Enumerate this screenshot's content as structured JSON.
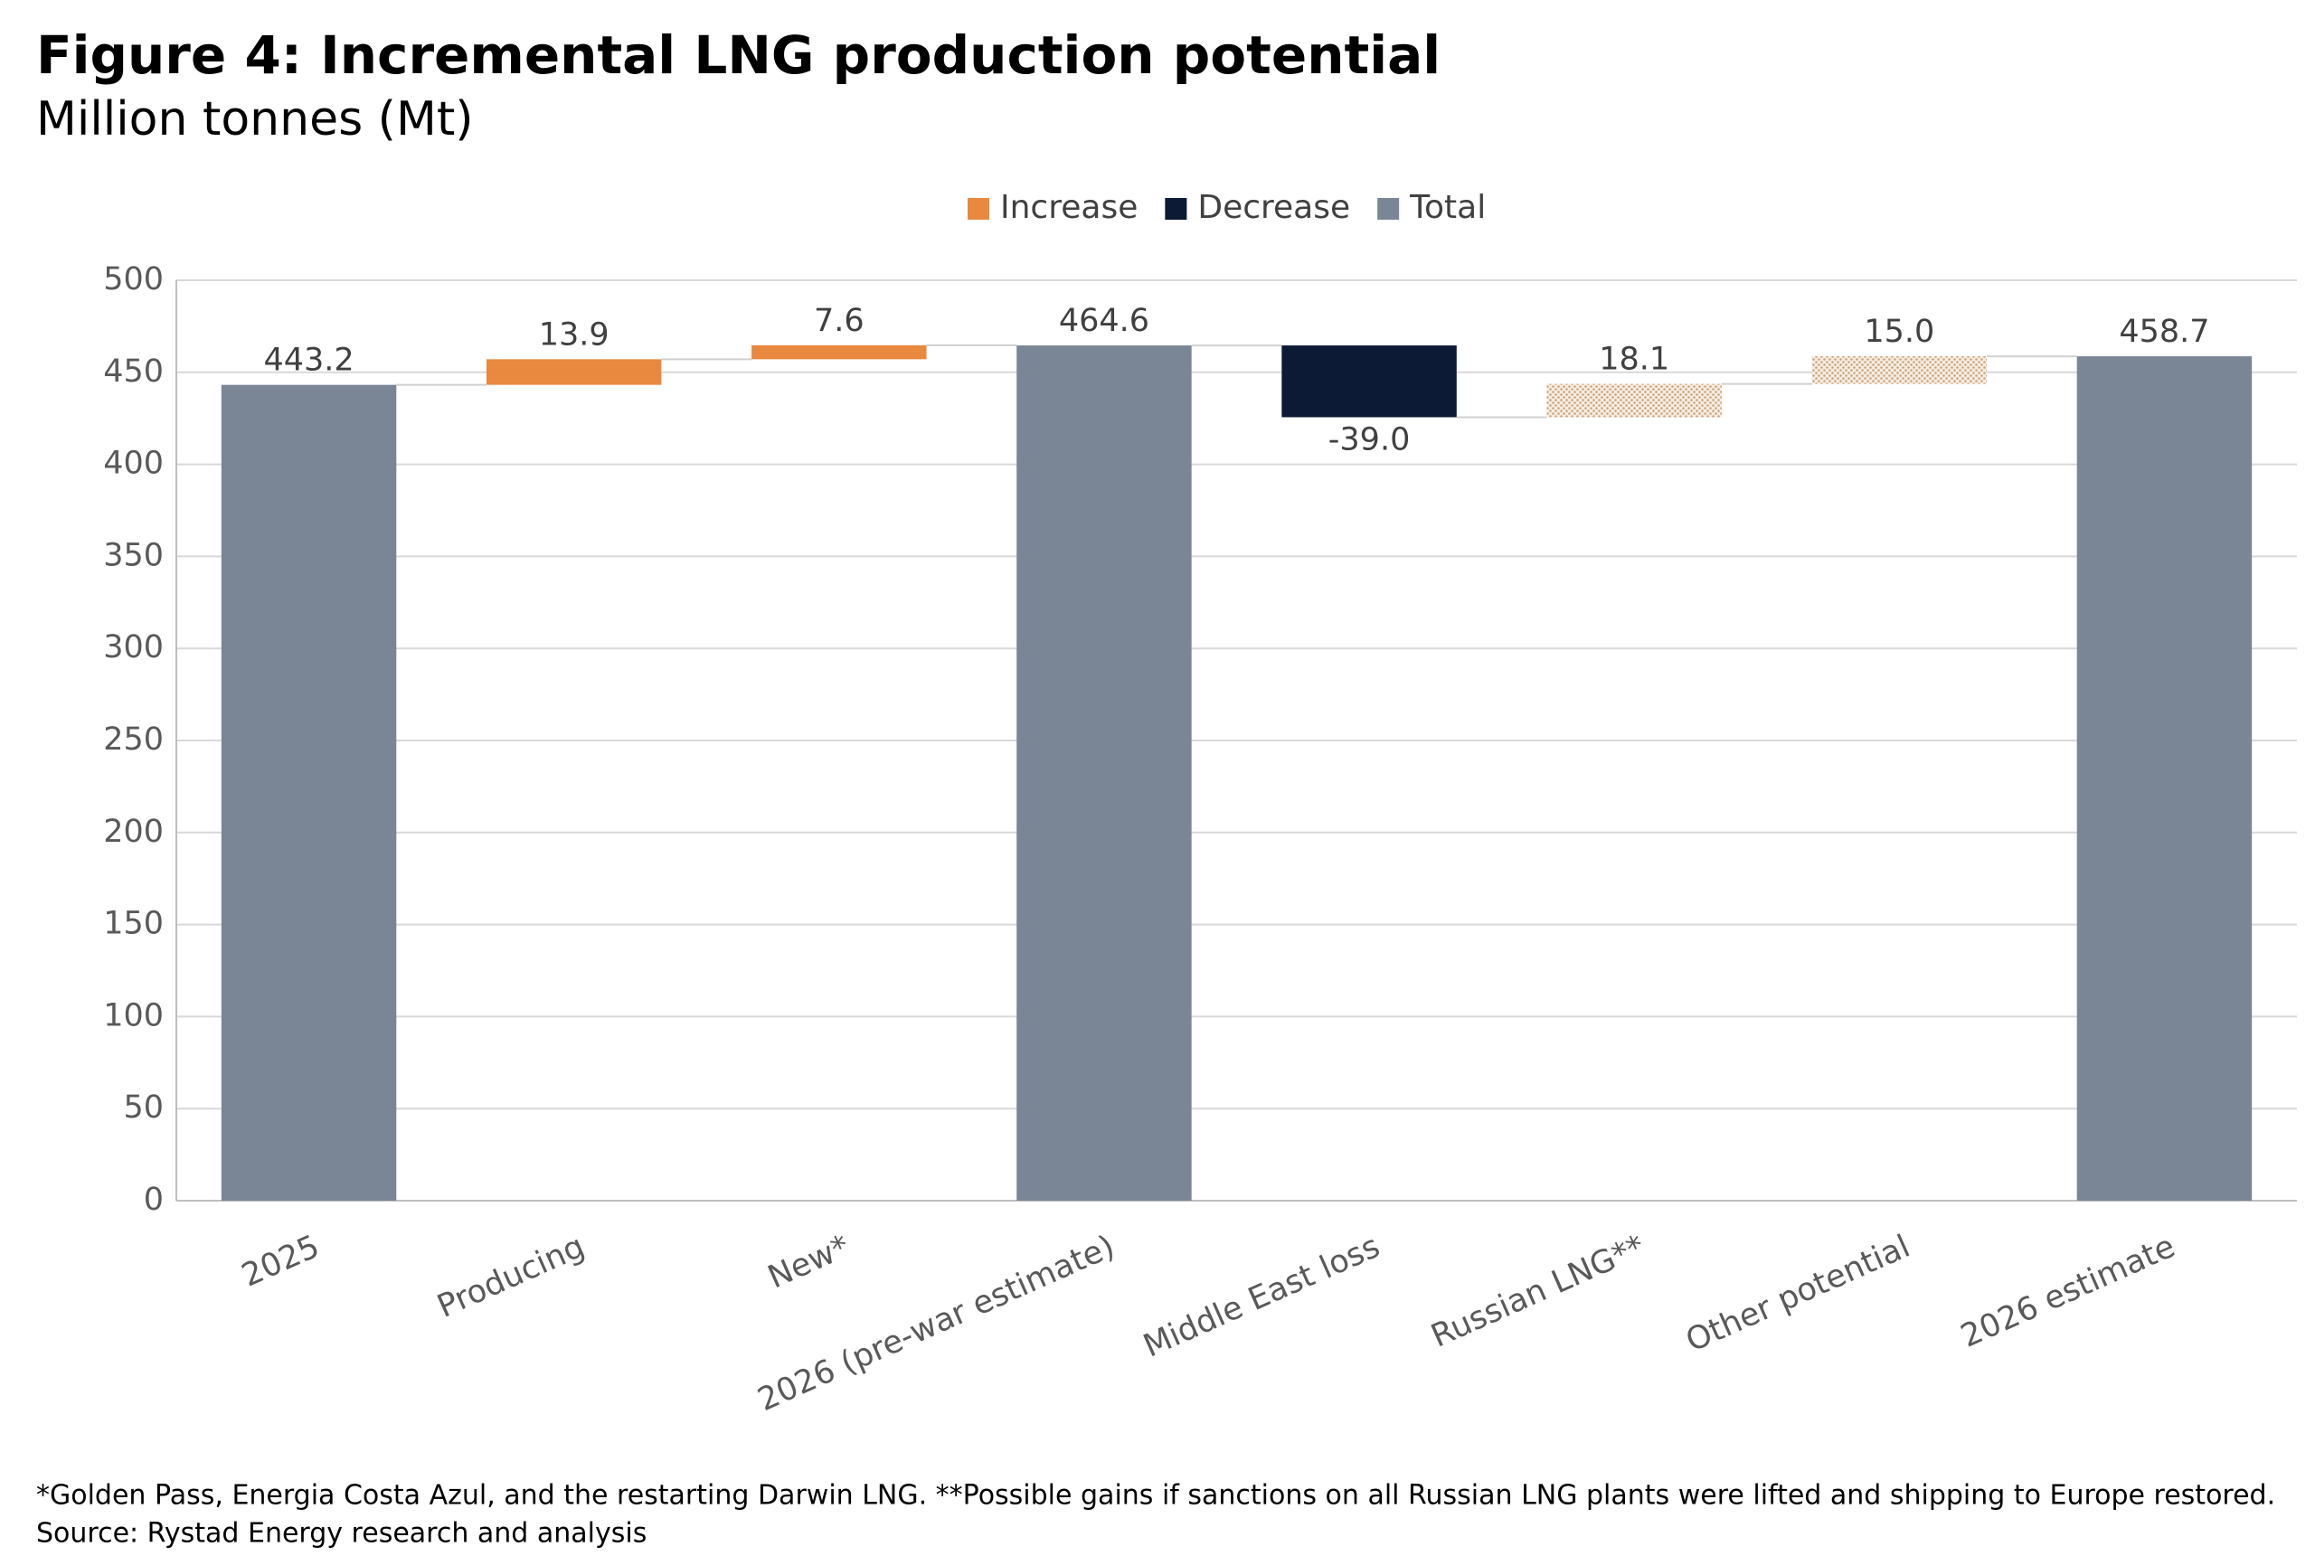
{
  "chart_data": {
    "type": "waterfall",
    "title": "Figure 4: Incremental LNG production potential",
    "subtitle": "Million tonnes (Mt)",
    "categories": [
      "2025",
      "Producing",
      "New*",
      "2026 (pre-war estimate)",
      "Middle East loss",
      "Russian LNG**",
      "Other potential",
      "2026 estimate"
    ],
    "values": [
      443.2,
      13.9,
      7.6,
      464.6,
      -39.0,
      18.1,
      15.0,
      458.7
    ],
    "value_labels": [
      "443.2",
      "13.9",
      "7.6",
      "464.6",
      "-39.0",
      "18.1",
      "15.0",
      "458.7"
    ],
    "measure": [
      "total",
      "relative",
      "relative",
      "total",
      "relative",
      "relative",
      "relative",
      "total"
    ],
    "hatched": [
      false,
      false,
      false,
      false,
      false,
      true,
      true,
      false
    ],
    "legend": [
      {
        "name": "Increase",
        "color": "#e8893f"
      },
      {
        "name": "Decrease",
        "color": "#0c1a36"
      },
      {
        "name": "Total",
        "color": "#7a8696"
      }
    ],
    "potential_color": "#c9a47c",
    "ylim": [
      0,
      500
    ],
    "yticks": [
      0,
      50,
      100,
      150,
      200,
      250,
      300,
      350,
      400,
      450,
      500
    ],
    "grid": true,
    "footnote": "*Golden Pass, Energia Costa Azul, and the restarting Darwin LNG. **Possible gains if sanctions on all Russian LNG plants were lifted and shipping to Europe restored.",
    "source": "Source: Rystad Energy research and analysis"
  }
}
